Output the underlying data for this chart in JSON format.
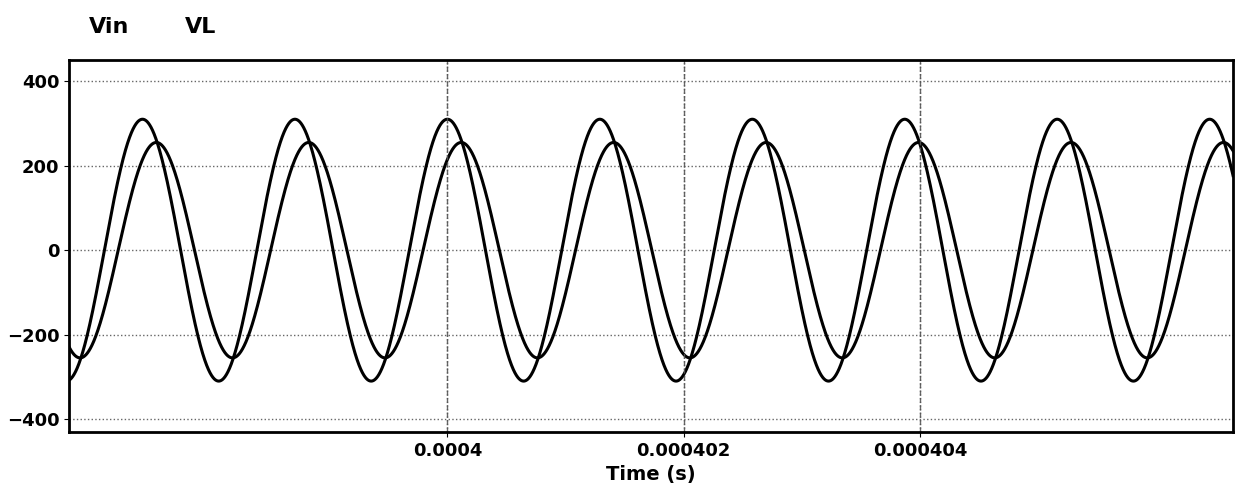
{
  "title": "",
  "xlabel": "Time (s)",
  "ylabel": "",
  "legend_labels": [
    "Vin",
    "VL"
  ],
  "xlim": [
    0.0003968,
    0.00040665
  ],
  "ylim": [
    -430,
    450
  ],
  "yticks": [
    -400,
    -200,
    0,
    200,
    400
  ],
  "xticks": [
    0.0004,
    0.000402,
    0.000404
  ],
  "vin_amplitude": 310,
  "vl_amplitude": 255,
  "frequency": 775000,
  "vin_phase": 1.57,
  "vl_phase": 1.0,
  "line_color": "#000000",
  "grid_color": "#555555",
  "background_color": "#ffffff",
  "line_width": 2.2,
  "legend_fontsize": 16,
  "tick_fontsize": 13,
  "xlabel_fontsize": 14
}
